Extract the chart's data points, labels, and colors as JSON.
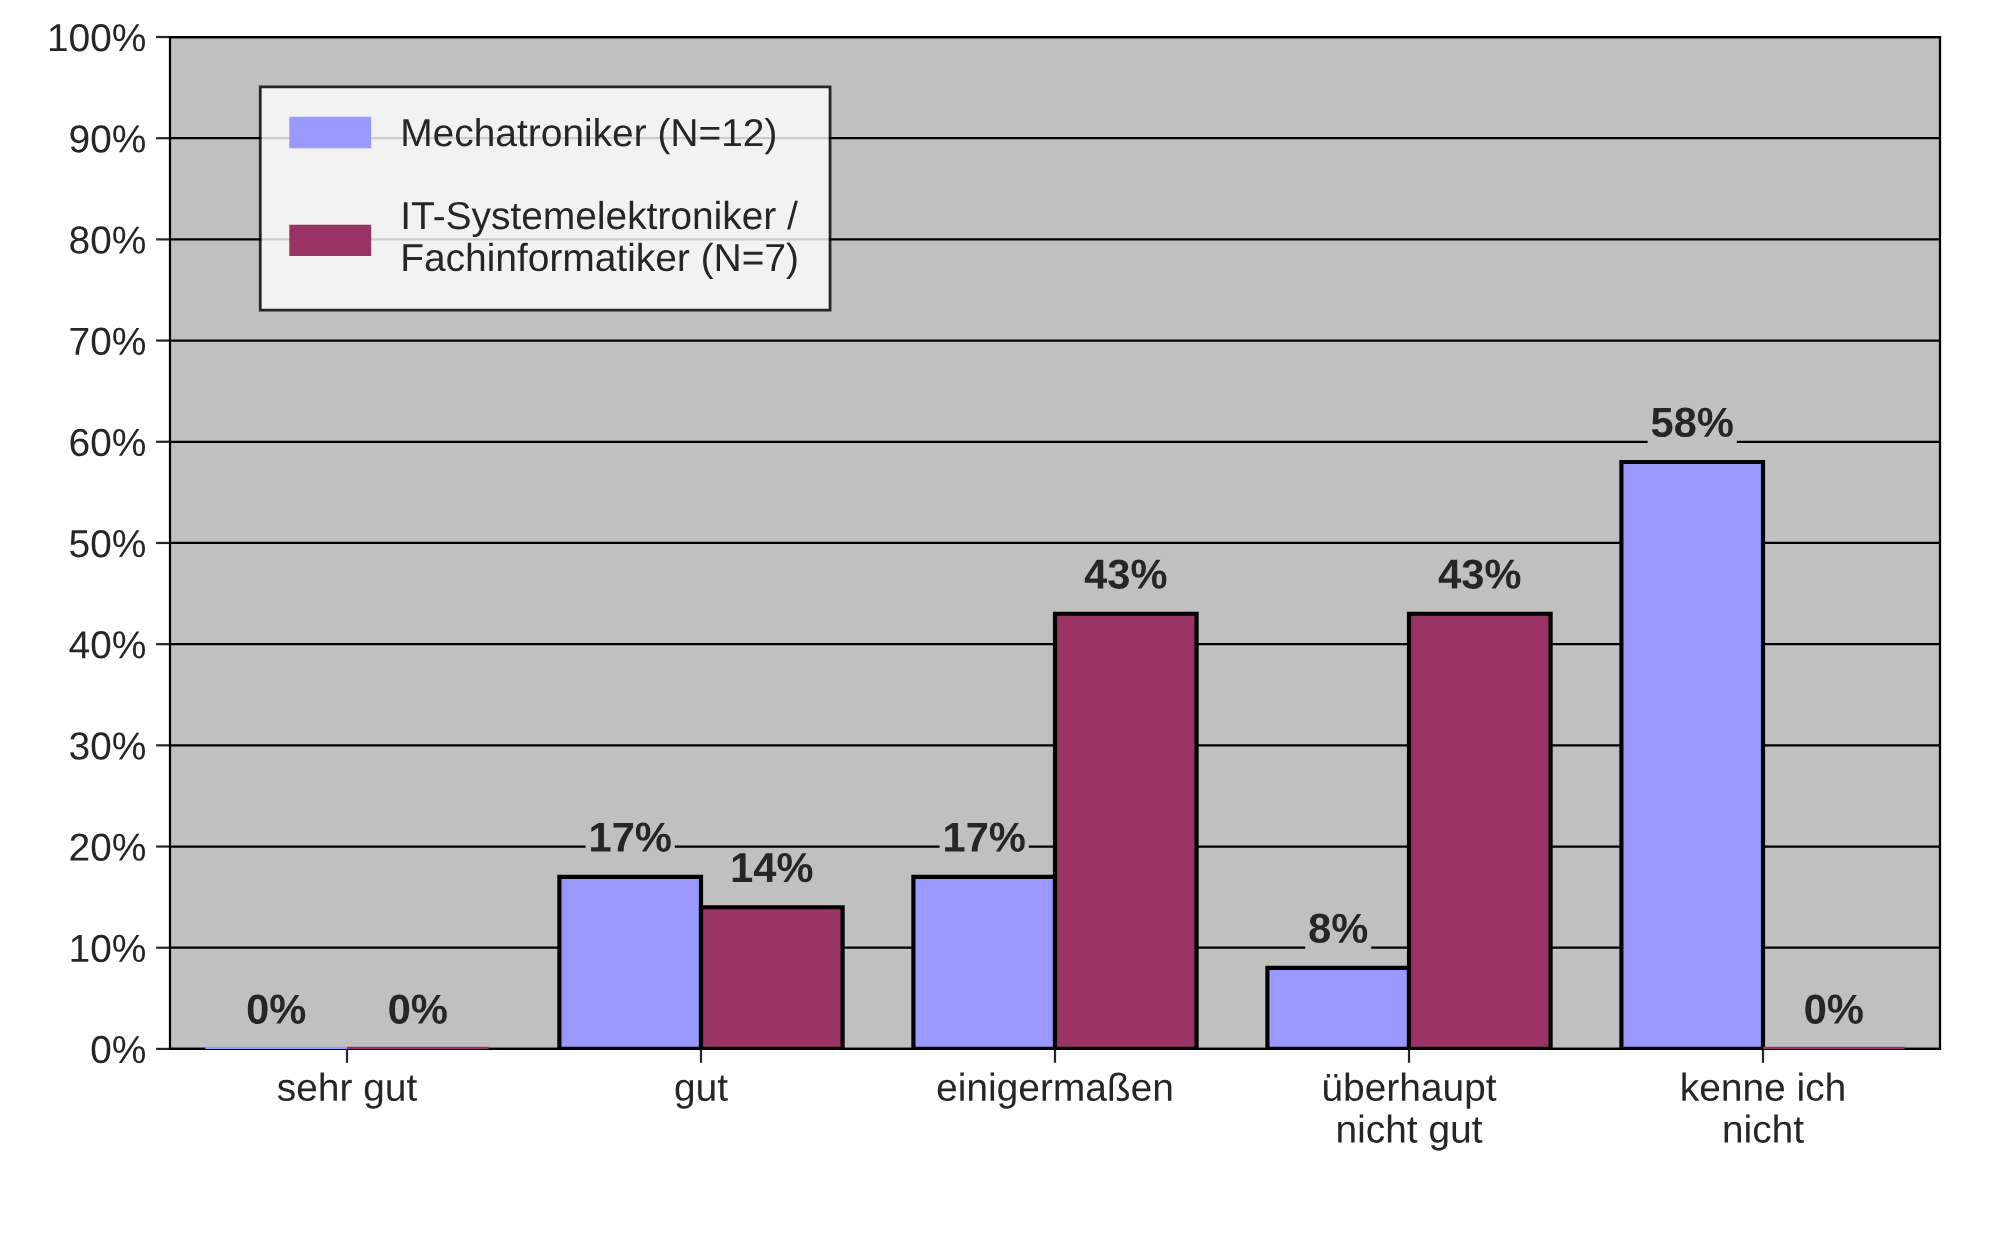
{
  "chart_data": {
    "type": "bar",
    "categories": [
      "sehr gut",
      "gut",
      "einigermaßen",
      "überhaupt\nnicht gut",
      "kenne ich\nnicht"
    ],
    "series": [
      {
        "name": "Mechatroniker (N=12)",
        "color": "#9999ff",
        "values": [
          0,
          17,
          17,
          8,
          58
        ],
        "value_labels": [
          "0%",
          "17%",
          "17%",
          "8%",
          "58%"
        ]
      },
      {
        "name": "IT-Systemelektroniker /\nFachinformatiker (N=7)",
        "color": "#993366",
        "values": [
          0,
          14,
          43,
          43,
          0
        ],
        "value_labels": [
          "0%",
          "14%",
          "43%",
          "43%",
          "0%"
        ]
      }
    ],
    "ylim": [
      0,
      100
    ],
    "yticks": [
      {
        "value": 0,
        "label": "0%"
      },
      {
        "value": 10,
        "label": "10%"
      },
      {
        "value": 20,
        "label": "20%"
      },
      {
        "value": 30,
        "label": "30%"
      },
      {
        "value": 40,
        "label": "40%"
      },
      {
        "value": 50,
        "label": "50%"
      },
      {
        "value": 60,
        "label": "60%"
      },
      {
        "value": 70,
        "label": "70%"
      },
      {
        "value": 80,
        "label": "80%"
      },
      {
        "value": 90,
        "label": "90%"
      },
      {
        "value": 100,
        "label": "100%"
      }
    ],
    "grid": "y",
    "legend": "top left"
  }
}
